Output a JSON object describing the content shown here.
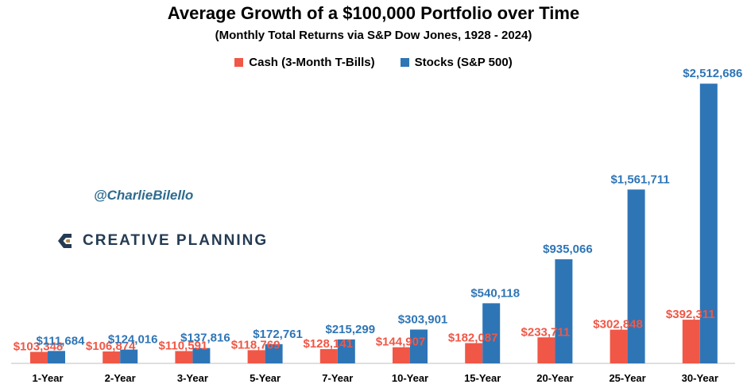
{
  "title": "Average Growth of a $100,000 Portfolio over Time",
  "subtitle": "(Monthly Total Returns via S&P Dow Jones, 1928 - 2024)",
  "watermark": {
    "handle": "@CharlieBilello",
    "logo_text": "CREATIVE PLANNING",
    "logo_icon": "creative-planning-logo-icon"
  },
  "colors": {
    "cash": "#f05746",
    "stocks": "#2e75b6",
    "cash_label": "#f05746",
    "stocks_label": "#2e75b6"
  },
  "chart_data": {
    "type": "bar",
    "title": "Average Growth of a $100,000 Portfolio over Time",
    "subtitle": "(Monthly Total Returns via S&P Dow Jones, 1928 - 2024)",
    "categories": [
      "1-Year",
      "2-Year",
      "3-Year",
      "5-Year",
      "7-Year",
      "10-Year",
      "15-Year",
      "20-Year",
      "25-Year",
      "30-Year"
    ],
    "series": [
      {
        "name": "Cash (3-Month T-Bills)",
        "values": [
          103348,
          106874,
          110591,
          118769,
          128141,
          144907,
          182087,
          233711,
          302848,
          392311
        ],
        "labels": [
          "$103,348",
          "$106,874",
          "$110,591",
          "$118,769",
          "$128,141",
          "$144,907",
          "$182,087",
          "$233,711",
          "$302,848",
          "$392,311"
        ]
      },
      {
        "name": "Stocks (S&P 500)",
        "values": [
          111684,
          124016,
          137816,
          172761,
          215299,
          303901,
          540118,
          935066,
          1561711,
          2512686
        ],
        "labels": [
          "$111,684",
          "$124,016",
          "$137,816",
          "$172,761",
          "$215,299",
          "$303,901",
          "$540,118",
          "$935,066",
          "$1,561,711",
          "$2,512,686"
        ]
      }
    ],
    "ylim": [
      0,
      2600000
    ],
    "grid": false,
    "legend": "top-center"
  }
}
